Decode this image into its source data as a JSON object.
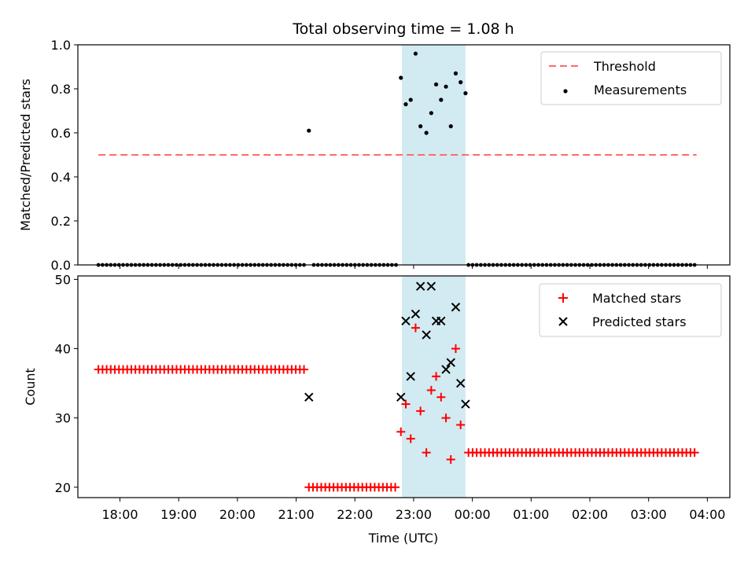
{
  "colors": {
    "shade": "#add8e6",
    "threshold": "#ff6b6b",
    "measurement": "#000000",
    "matched": "#ff0000",
    "predicted": "#000000"
  },
  "chart_data": [
    {
      "type": "scatter",
      "title": "Total observing time = 1.08 h",
      "xlabel": "",
      "ylabel": "Matched/Predicted stars",
      "xlim": [
        "17:17",
        "04:23"
      ],
      "ylim": [
        0,
        1.0
      ],
      "yticks": [
        "0.0",
        "0.2",
        "0.4",
        "0.6",
        "0.8",
        "1.0"
      ],
      "shaded_span": [
        "22:48",
        "23:53"
      ],
      "legend_position": "top-right",
      "legend": {
        "threshold": "Threshold",
        "measurements": "Measurements"
      },
      "threshold_line": {
        "y": 0.5,
        "x_range": [
          "17:38",
          "03:49"
        ]
      },
      "zero_runs": [
        {
          "start": "17:38",
          "end": "21:08",
          "step_min": 4.2
        },
        {
          "start": "21:18",
          "end": "22:45",
          "step_min": 4.2
        },
        {
          "start": "23:56",
          "end": "03:49",
          "step_min": 4.2
        }
      ],
      "points": [
        {
          "x": "21:13",
          "y": 0.61
        },
        {
          "x": "22:47",
          "y": 0.85
        },
        {
          "x": "22:52",
          "y": 0.73
        },
        {
          "x": "22:57",
          "y": 0.75
        },
        {
          "x": "23:02",
          "y": 0.96
        },
        {
          "x": "23:07",
          "y": 0.63
        },
        {
          "x": "23:13",
          "y": 0.6
        },
        {
          "x": "23:18",
          "y": 0.69
        },
        {
          "x": "23:23",
          "y": 0.82
        },
        {
          "x": "23:28",
          "y": 0.75
        },
        {
          "x": "23:33",
          "y": 0.81
        },
        {
          "x": "23:38",
          "y": 0.63
        },
        {
          "x": "23:43",
          "y": 0.87
        },
        {
          "x": "23:48",
          "y": 0.83
        },
        {
          "x": "23:53",
          "y": 0.78
        }
      ]
    },
    {
      "type": "scatter",
      "title": "",
      "xlabel": "Time (UTC)",
      "ylabel": "Count",
      "xlim": [
        "17:17",
        "04:23"
      ],
      "ylim": [
        18.5,
        50.5
      ],
      "yticks": [
        "20",
        "30",
        "40",
        "50"
      ],
      "xticks": [
        "18:00",
        "19:00",
        "20:00",
        "21:00",
        "22:00",
        "23:00",
        "00:00",
        "01:00",
        "02:00",
        "03:00",
        "04:00"
      ],
      "shaded_span": [
        "22:48",
        "23:53"
      ],
      "legend_position": "top-right",
      "legend": {
        "matched": "Matched stars",
        "predicted": "Predicted stars"
      },
      "matched_runs": [
        {
          "start": "17:38",
          "end": "21:08",
          "step_min": 4.2,
          "y": 37
        },
        {
          "start": "21:13",
          "end": "22:45",
          "step_min": 4.2,
          "y": 20
        },
        {
          "start": "23:56",
          "end": "03:49",
          "step_min": 4.2,
          "y": 25
        }
      ],
      "predicted_points": [
        {
          "x": "21:13",
          "y": 33
        },
        {
          "x": "22:47",
          "y": 33
        },
        {
          "x": "22:52",
          "y": 44
        },
        {
          "x": "22:57",
          "y": 36
        },
        {
          "x": "23:02",
          "y": 45
        },
        {
          "x": "23:07",
          "y": 49
        },
        {
          "x": "23:13",
          "y": 42
        },
        {
          "x": "23:18",
          "y": 49
        },
        {
          "x": "23:23",
          "y": 44
        },
        {
          "x": "23:28",
          "y": 44
        },
        {
          "x": "23:33",
          "y": 37
        },
        {
          "x": "23:38",
          "y": 38
        },
        {
          "x": "23:43",
          "y": 46
        },
        {
          "x": "23:48",
          "y": 35
        },
        {
          "x": "23:53",
          "y": 32
        }
      ],
      "matched_points": [
        {
          "x": "22:47",
          "y": 28
        },
        {
          "x": "22:52",
          "y": 32
        },
        {
          "x": "22:57",
          "y": 27
        },
        {
          "x": "23:02",
          "y": 43
        },
        {
          "x": "23:07",
          "y": 31
        },
        {
          "x": "23:13",
          "y": 25
        },
        {
          "x": "23:18",
          "y": 34
        },
        {
          "x": "23:23",
          "y": 36
        },
        {
          "x": "23:28",
          "y": 33
        },
        {
          "x": "23:33",
          "y": 30
        },
        {
          "x": "23:38",
          "y": 24
        },
        {
          "x": "23:43",
          "y": 40
        },
        {
          "x": "23:48",
          "y": 29
        }
      ]
    }
  ]
}
